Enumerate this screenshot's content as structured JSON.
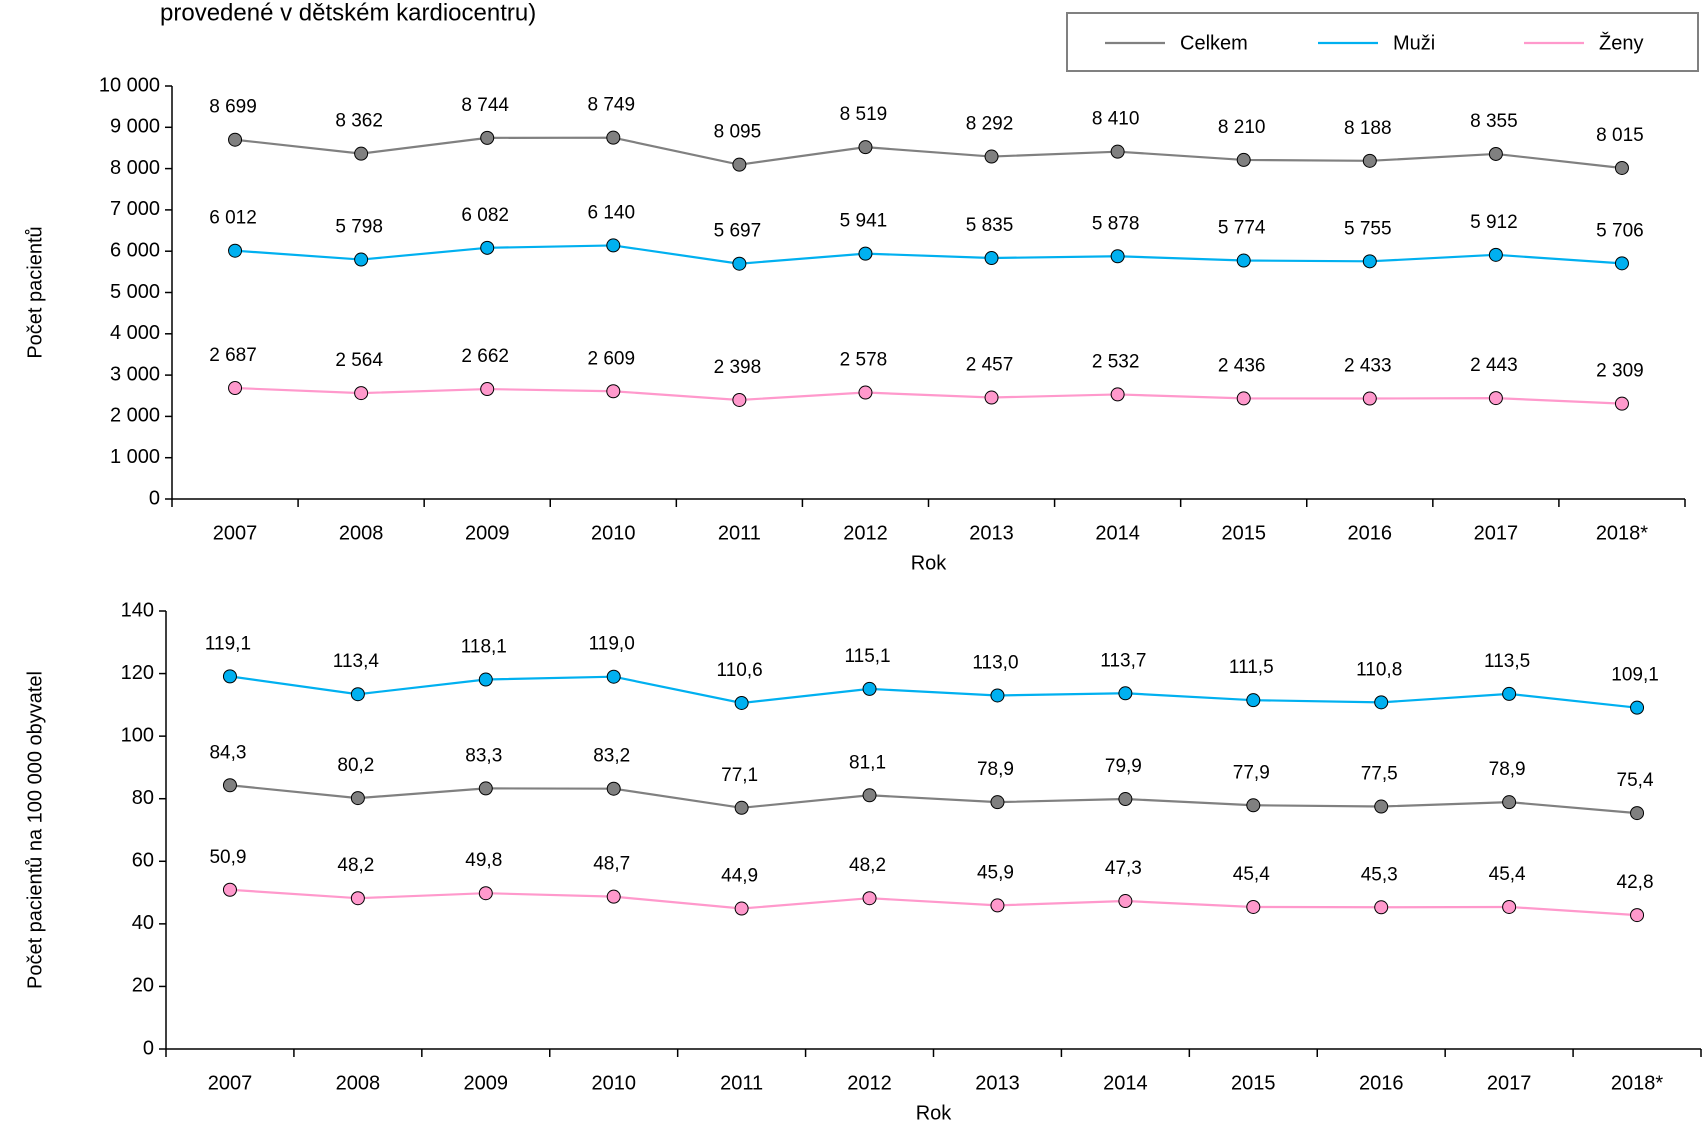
{
  "chart_data": [
    {
      "type": "line",
      "title": "provedené v dětském kardiocentru)",
      "xlabel": "Rok",
      "ylabel": "Počet pacientů",
      "categories": [
        "2007",
        "2008",
        "2009",
        "2010",
        "2011",
        "2012",
        "2013",
        "2014",
        "2015",
        "2016",
        "2017",
        "2018*"
      ],
      "legend": "top-right",
      "series": [
        {
          "name": "Celkem",
          "color": "#808080",
          "values": [
            8699,
            8362,
            8744,
            8749,
            8095,
            8519,
            8292,
            8410,
            8210,
            8188,
            8355,
            8015
          ],
          "value_labels": [
            "8 699",
            "8 362",
            "8 744",
            "8 749",
            "8 095",
            "8 519",
            "8 292",
            "8 410",
            "8 210",
            "8 188",
            "8 355",
            "8 015"
          ]
        },
        {
          "name": "Muži",
          "color": "#00b0f0",
          "values": [
            6012,
            5798,
            6082,
            6140,
            5697,
            5941,
            5835,
            5878,
            5774,
            5755,
            5912,
            5706
          ],
          "value_labels": [
            "6 012",
            "5 798",
            "6 082",
            "6 140",
            "5 697",
            "5 941",
            "5 835",
            "5 878",
            "5 774",
            "5 755",
            "5 912",
            "5 706"
          ]
        },
        {
          "name": "Ženy",
          "color": "#ff99cc",
          "values": [
            2687,
            2564,
            2662,
            2609,
            2398,
            2578,
            2457,
            2532,
            2436,
            2433,
            2443,
            2309
          ],
          "value_labels": [
            "2 687",
            "2 564",
            "2 662",
            "2 609",
            "2 398",
            "2 578",
            "2 457",
            "2 532",
            "2 436",
            "2 433",
            "2 443",
            "2 309"
          ]
        }
      ],
      "ylim": [
        0,
        10000
      ],
      "yticks": [
        0,
        {
          "value": 1000,
          "label": "1 000"
        },
        {
          "value": 2000,
          "label": "2 000"
        },
        {
          "value": 3000,
          "label": "3 000"
        },
        {
          "value": 4000,
          "label": "4 000"
        },
        {
          "value": 5000,
          "label": "5 000"
        },
        {
          "value": 6000,
          "label": "6 000"
        },
        {
          "value": 7000,
          "label": "7 000"
        },
        {
          "value": 8000,
          "label": "8 000"
        },
        {
          "value": 9000,
          "label": "9 000"
        },
        {
          "value": 10000,
          "label": "10 000"
        }
      ]
    },
    {
      "type": "line",
      "xlabel": "Rok",
      "ylabel": "Počet pacientů na 100 000 obyvatel",
      "categories": [
        "2007",
        "2008",
        "2009",
        "2010",
        "2011",
        "2012",
        "2013",
        "2014",
        "2015",
        "2016",
        "2017",
        "2018*"
      ],
      "series": [
        {
          "name": "Muži",
          "color": "#00b0f0",
          "values": [
            119.1,
            113.4,
            118.1,
            119.0,
            110.6,
            115.1,
            113.0,
            113.7,
            111.5,
            110.8,
            113.5,
            109.1
          ],
          "value_labels": [
            "119,1",
            "113,4",
            "118,1",
            "119,0",
            "110,6",
            "115,1",
            "113,0",
            "113,7",
            "111,5",
            "110,8",
            "113,5",
            "109,1"
          ]
        },
        {
          "name": "Celkem",
          "color": "#808080",
          "values": [
            84.3,
            80.2,
            83.3,
            83.2,
            77.1,
            81.1,
            78.9,
            79.9,
            77.9,
            77.5,
            78.9,
            75.4
          ],
          "value_labels": [
            "84,3",
            "80,2",
            "83,3",
            "83,2",
            "77,1",
            "81,1",
            "78,9",
            "79,9",
            "77,9",
            "77,5",
            "78,9",
            "75,4"
          ]
        },
        {
          "name": "Ženy",
          "color": "#ff99cc",
          "values": [
            50.9,
            48.2,
            49.8,
            48.7,
            44.9,
            48.2,
            45.9,
            47.3,
            45.4,
            45.3,
            45.4,
            42.8
          ],
          "value_labels": [
            "50,9",
            "48,2",
            "49,8",
            "48,7",
            "44,9",
            "48,2",
            "45,9",
            "47,3",
            "45,4",
            "45,3",
            "45,4",
            "42,8"
          ]
        }
      ],
      "ylim": [
        0,
        140
      ],
      "yticks": [
        0,
        20,
        40,
        60,
        80,
        100,
        120,
        140
      ]
    }
  ]
}
